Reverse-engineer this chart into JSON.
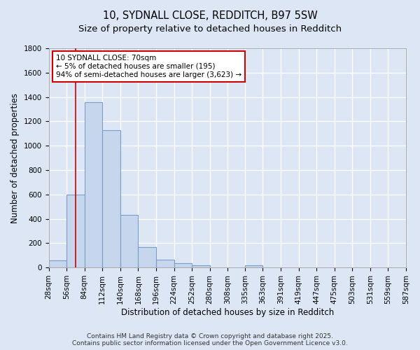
{
  "title1": "10, SYDNALL CLOSE, REDDITCH, B97 5SW",
  "title2": "Size of property relative to detached houses in Redditch",
  "xlabel": "Distribution of detached houses by size in Redditch",
  "ylabel": "Number of detached properties",
  "background_color": "#dce6f5",
  "bar_color": "#c5d6ed",
  "bar_edge_color": "#7a9ec8",
  "grid_color": "#ffffff",
  "bin_edges": [
    28,
    56,
    84,
    112,
    140,
    168,
    196,
    224,
    252,
    280,
    308,
    335,
    363,
    391,
    419,
    447,
    475,
    503,
    531,
    559,
    587
  ],
  "bar_heights": [
    60,
    600,
    1360,
    1130,
    430,
    170,
    65,
    35,
    20,
    0,
    0,
    20,
    0,
    0,
    0,
    0,
    0,
    0,
    0,
    0
  ],
  "property_size": 70,
  "vline_color": "#cc0000",
  "annotation_title": "10 SYDNALL CLOSE: 70sqm",
  "annotation_line1": "← 5% of detached houses are smaller (195)",
  "annotation_line2": "94% of semi-detached houses are larger (3,623) →",
  "annotation_box_color": "#ffffff",
  "annotation_edge_color": "#cc0000",
  "ylim": [
    0,
    1800
  ],
  "yticks": [
    0,
    200,
    400,
    600,
    800,
    1000,
    1200,
    1400,
    1600,
    1800
  ],
  "footer1": "Contains HM Land Registry data © Crown copyright and database right 2025.",
  "footer2": "Contains public sector information licensed under the Open Government Licence v3.0.",
  "title_fontsize": 10.5,
  "subtitle_fontsize": 9.5,
  "axis_label_fontsize": 8.5,
  "tick_fontsize": 7.5,
  "annotation_fontsize": 7.5,
  "footer_fontsize": 6.5
}
